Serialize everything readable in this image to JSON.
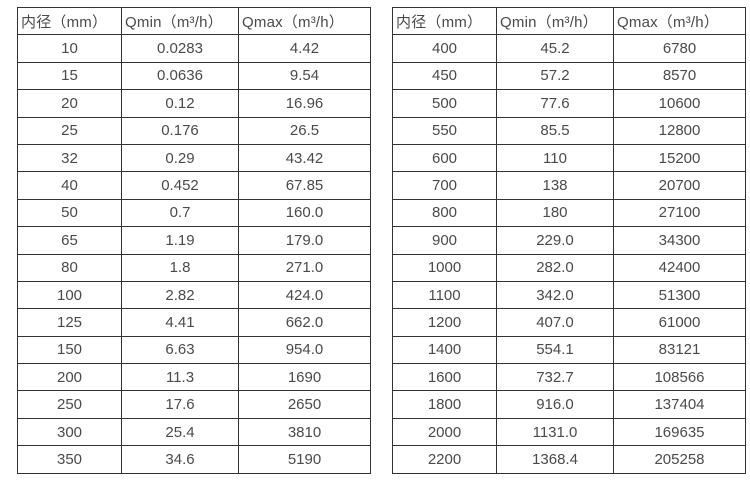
{
  "colors": {
    "text": "#4a4a4a",
    "border": "#333333",
    "background": "#ffffff"
  },
  "chart_data": [
    {
      "type": "table",
      "title": "",
      "columns": [
        "内径（mm）",
        "Qmin（m³/h）",
        "Qmax（m³/h）"
      ],
      "rows": [
        [
          "10",
          "0.0283",
          "4.42"
        ],
        [
          "15",
          "0.0636",
          "9.54"
        ],
        [
          "20",
          "0.12",
          "16.96"
        ],
        [
          "25",
          "0.176",
          "26.5"
        ],
        [
          "32",
          "0.29",
          "43.42"
        ],
        [
          "40",
          "0.452",
          "67.85"
        ],
        [
          "50",
          "0.7",
          "160.0"
        ],
        [
          "65",
          "1.19",
          "179.0"
        ],
        [
          "80",
          "1.8",
          "271.0"
        ],
        [
          "100",
          "2.82",
          "424.0"
        ],
        [
          "125",
          "4.41",
          "662.0"
        ],
        [
          "150",
          "6.63",
          "954.0"
        ],
        [
          "200",
          "11.3",
          "1690"
        ],
        [
          "250",
          "17.6",
          "2650"
        ],
        [
          "300",
          "25.4",
          "3810"
        ],
        [
          "350",
          "34.6",
          "5190"
        ]
      ]
    },
    {
      "type": "table",
      "title": "",
      "columns": [
        "内径（mm）",
        "Qmin（m³/h）",
        "Qmax（m³/h）"
      ],
      "rows": [
        [
          "400",
          "45.2",
          "6780"
        ],
        [
          "450",
          "57.2",
          "8570"
        ],
        [
          "500",
          "77.6",
          "10600"
        ],
        [
          "550",
          "85.5",
          "12800"
        ],
        [
          "600",
          "110",
          "15200"
        ],
        [
          "700",
          "138",
          "20700"
        ],
        [
          "800",
          "180",
          "27100"
        ],
        [
          "900",
          "229.0",
          "34300"
        ],
        [
          "1000",
          "282.0",
          "42400"
        ],
        [
          "1100",
          "342.0",
          "51300"
        ],
        [
          "1200",
          "407.0",
          "61000"
        ],
        [
          "1400",
          "554.1",
          "83121"
        ],
        [
          "1600",
          "732.7",
          "108566"
        ],
        [
          "1800",
          "916.0",
          "137404"
        ],
        [
          "2000",
          "1131.0",
          "169635"
        ],
        [
          "2200",
          "1368.4",
          "205258"
        ]
      ]
    }
  ]
}
